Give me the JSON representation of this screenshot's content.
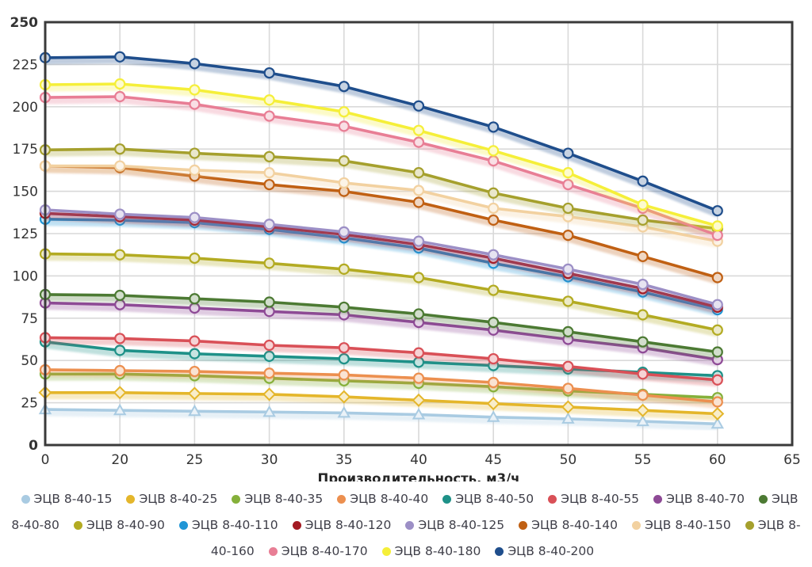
{
  "chart_data": {
    "type": "line",
    "title": "",
    "xlabel": "Производительность, м3/ч",
    "ylabel": "",
    "x_scale": "categorical-even",
    "x_ticks": [
      "0",
      "20",
      "25",
      "30",
      "35",
      "40",
      "45",
      "50",
      "55",
      "60",
      "65"
    ],
    "categories": [
      0,
      20,
      25,
      30,
      35,
      40,
      45,
      50,
      55,
      60
    ],
    "ylim": [
      0,
      250
    ],
    "y_tick_step": 25,
    "grid": true,
    "legend_position": "bottom",
    "grid_color": "#d9d9d9",
    "axis_color": "#3a3a3a",
    "tick_text_color": "#333333",
    "series": [
      {
        "name": "ЭЦВ 8-40-15",
        "color": "#a9cbe2",
        "marker": "triangle",
        "values": [
          21,
          20.5,
          20,
          19.5,
          19,
          18,
          16.5,
          15.5,
          14,
          12.5
        ]
      },
      {
        "name": "ЭЦВ 8-40-25",
        "color": "#e4b62b",
        "marker": "diamond",
        "values": [
          31,
          31,
          30.5,
          30,
          28.5,
          26.5,
          24.5,
          22.5,
          20.5,
          18.5
        ]
      },
      {
        "name": "ЭЦВ 8-40-35",
        "color": "#85b03a",
        "marker": "circle",
        "values": [
          42,
          42,
          41,
          39.5,
          38,
          36.5,
          34.5,
          32,
          30,
          28
        ]
      },
      {
        "name": "ЭЦВ 8-40-40",
        "color": "#ec8f4f",
        "marker": "circle",
        "values": [
          44.5,
          44,
          43.5,
          42.5,
          41.5,
          39.5,
          37,
          33.5,
          29.5,
          25.5
        ]
      },
      {
        "name": "ЭЦВ 8-40-50",
        "color": "#1e9188",
        "marker": "circle",
        "values": [
          61,
          56,
          54,
          52.5,
          51,
          49,
          47,
          45,
          43,
          41
        ]
      },
      {
        "name": "ЭЦВ 8-40-55",
        "color": "#d95057",
        "marker": "circle",
        "values": [
          63.5,
          63,
          61.5,
          59,
          57.5,
          54.5,
          51,
          46.5,
          42,
          38.5
        ]
      },
      {
        "name": "ЭЦВ 8-40-70",
        "color": "#8e4a96",
        "marker": "circle",
        "values": [
          84,
          83,
          81,
          79,
          77,
          72.5,
          68,
          62.5,
          57.5,
          50.5
        ]
      },
      {
        "name": "ЭЦВ 8-40-80",
        "color": "#4c7a33",
        "marker": "circle",
        "values": [
          89,
          88.5,
          86.5,
          84.5,
          81.5,
          77.5,
          72.5,
          67,
          61,
          55
        ]
      },
      {
        "name": "ЭЦВ 8-40-90",
        "color": "#b3ab22",
        "marker": "circle",
        "values": [
          113,
          112.5,
          110.5,
          107.5,
          104,
          99,
          91.5,
          85,
          77,
          68
        ]
      },
      {
        "name": "ЭЦВ 8-40-110",
        "color": "#2196d6",
        "marker": "circle",
        "values": [
          133.5,
          133,
          131.5,
          127.5,
          122.5,
          116.5,
          107.5,
          99.5,
          90.5,
          80
        ]
      },
      {
        "name": "ЭЦВ 8-40-120",
        "color": "#a31a22",
        "marker": "circle",
        "values": [
          137,
          135,
          133,
          129,
          124.5,
          118.5,
          110.5,
          101.5,
          92.5,
          81.5
        ]
      },
      {
        "name": "ЭЦВ 8-40-125",
        "color": "#9c8fc6",
        "marker": "circle",
        "values": [
          139,
          136.5,
          134.5,
          130.5,
          126,
          120.5,
          112.5,
          104,
          95,
          83
        ]
      },
      {
        "name": "ЭЦВ 8-40-140",
        "color": "#c06013",
        "marker": "circle",
        "values": [
          165,
          164,
          159,
          154,
          150,
          143.5,
          133,
          124,
          111.5,
          99
        ]
      },
      {
        "name": "ЭЦВ 8-40-150",
        "color": "#f2d1a0",
        "marker": "circle",
        "values": [
          165,
          165,
          162.5,
          161,
          155,
          150.5,
          140,
          135,
          129,
          120.5
        ]
      },
      {
        "name": "ЭЦВ 8-40-160",
        "color": "#a5a02d",
        "marker": "circle",
        "values": [
          174.5,
          175,
          172.5,
          170.5,
          168,
          161,
          149,
          140,
          133,
          128
        ]
      },
      {
        "name": "ЭЦВ 8-40-170",
        "color": "#e87e95",
        "marker": "circle",
        "values": [
          205.5,
          206,
          201.5,
          194.5,
          188.5,
          179,
          168,
          154,
          140,
          124
        ]
      },
      {
        "name": "ЭЦВ 8-40-180",
        "color": "#f5ef39",
        "marker": "circle",
        "values": [
          213,
          213.5,
          210,
          204,
          197,
          186,
          174,
          161,
          142,
          129.5
        ]
      },
      {
        "name": "ЭЦВ 8-40-200",
        "color": "#1f4e8c",
        "marker": "circle",
        "values": [
          229,
          229.5,
          225.5,
          220,
          212,
          200.5,
          188,
          172.5,
          156,
          138.5
        ]
      }
    ]
  }
}
